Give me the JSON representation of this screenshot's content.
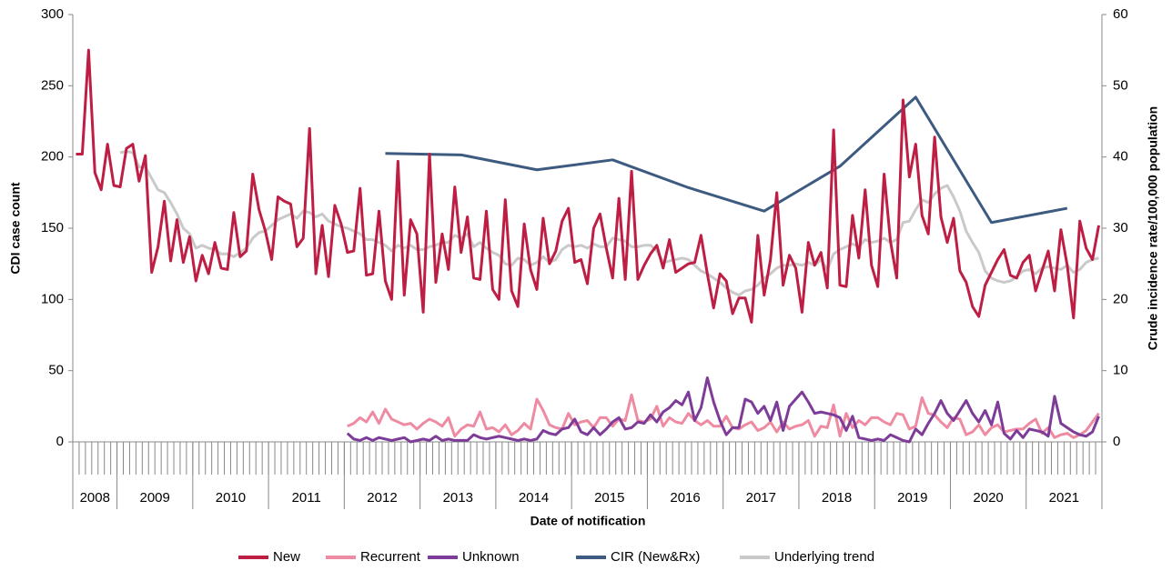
{
  "chart_data": {
    "type": "line",
    "y_label": "CDI case count",
    "y2_label": "Crude incidence rate/100,000 population",
    "x_label": "Date of notification",
    "ylim": [
      0,
      300
    ],
    "yticks": [
      0,
      50,
      100,
      150,
      200,
      250,
      300
    ],
    "y2lim": [
      0,
      60
    ],
    "y2ticks": [
      0,
      10,
      20,
      30,
      40,
      50,
      60
    ],
    "year_labels": [
      "2008",
      "2009",
      "2010",
      "2011",
      "2012",
      "2013",
      "2014",
      "2015",
      "2016",
      "2017",
      "2018",
      "2019",
      "2020",
      "2021"
    ],
    "year_months": [
      7,
      12,
      12,
      12,
      12,
      12,
      12,
      12,
      12,
      12,
      12,
      12,
      12,
      12
    ],
    "categories": [
      null,
      null,
      null,
      null,
      null,
      null,
      null,
      null,
      null,
      null,
      null,
      null,
      null,
      null,
      null,
      null,
      null,
      null,
      null,
      null,
      null,
      null,
      null,
      null,
      null,
      null,
      null,
      null,
      null,
      null,
      null,
      null,
      null,
      null,
      null,
      null,
      null,
      null,
      null,
      null,
      null,
      null,
      null,
      null,
      null,
      null,
      null,
      null,
      null,
      null,
      null,
      null,
      null,
      null,
      null,
      null,
      null,
      null,
      null,
      null,
      null,
      null,
      null,
      null,
      null,
      null,
      null,
      null,
      null,
      null,
      null,
      null,
      null,
      null,
      null,
      null,
      null,
      null,
      null,
      null,
      null,
      null,
      null,
      null,
      null,
      null,
      null,
      null,
      null,
      null,
      null,
      null,
      null,
      null,
      null,
      null,
      null,
      null,
      null,
      null,
      null,
      null,
      null,
      null,
      null,
      null,
      null,
      null,
      null,
      null,
      null,
      null,
      null,
      null,
      null,
      null,
      null,
      null,
      null,
      null,
      null,
      null,
      null,
      null,
      null,
      null,
      null,
      null,
      null,
      null,
      null,
      null,
      null,
      null,
      null,
      null,
      null,
      null,
      null,
      null,
      null,
      null,
      null,
      null,
      null,
      null,
      null,
      null,
      null,
      null,
      null,
      null,
      null,
      null,
      null,
      null,
      null,
      null,
      null,
      null,
      null,
      null,
      null
    ],
    "series": [
      {
        "name": "New",
        "color": "#be1e44",
        "values": [
          202,
          202,
          275,
          189,
          177,
          209,
          180,
          179,
          206,
          209,
          183,
          201,
          119,
          137,
          169,
          127,
          156,
          126,
          144,
          113,
          131,
          118,
          140,
          122,
          121,
          161,
          130,
          134,
          188,
          163,
          148,
          128,
          172,
          169,
          167,
          137,
          143,
          220,
          118,
          152,
          116,
          166,
          153,
          133,
          134,
          178,
          117,
          118,
          162,
          113,
          100,
          197,
          103,
          156,
          146,
          91,
          202,
          112,
          146,
          121,
          179,
          133,
          158,
          115,
          114,
          162,
          107,
          100,
          170,
          106,
          95,
          153,
          121,
          107,
          157,
          125,
          134,
          155,
          164,
          126,
          128,
          111,
          150,
          160,
          136,
          115,
          171,
          114,
          190,
          114,
          124,
          132,
          138,
          122,
          142,
          119,
          122,
          125,
          126,
          145,
          118,
          94,
          118,
          113,
          90,
          101,
          101,
          84,
          145,
          103,
          128,
          175,
          110,
          131,
          122,
          91,
          140,
          124,
          133,
          108,
          219,
          110,
          109,
          159,
          129,
          177,
          124,
          109,
          188,
          141,
          115,
          240,
          186,
          209,
          159,
          146,
          214,
          158,
          140,
          157,
          120,
          112,
          95,
          88,
          110,
          119,
          128,
          135,
          117,
          115,
          126,
          131,
          106,
          120,
          134,
          106,
          149,
          124,
          87,
          155,
          136,
          128,
          152
        ]
      },
      {
        "name": "Recurrent",
        "color": "#ee8aa2",
        "values": [
          null,
          null,
          null,
          null,
          null,
          null,
          null,
          null,
          null,
          null,
          null,
          null,
          null,
          null,
          null,
          null,
          null,
          null,
          null,
          null,
          null,
          null,
          null,
          null,
          null,
          null,
          null,
          null,
          null,
          null,
          null,
          null,
          null,
          null,
          null,
          null,
          null,
          null,
          null,
          null,
          null,
          null,
          null,
          11,
          13,
          17,
          14,
          21,
          13,
          23,
          16,
          14,
          12,
          13,
          9,
          13,
          16,
          14,
          11,
          17,
          4,
          9,
          12,
          11,
          21,
          9,
          10,
          7,
          12,
          5,
          8,
          13,
          9,
          30,
          22,
          12,
          10,
          9,
          20,
          12,
          14,
          15,
          10,
          17,
          17,
          11,
          16,
          15,
          33,
          15,
          14,
          16,
          25,
          11,
          17,
          14,
          13,
          20,
          15,
          12,
          15,
          11,
          11,
          18,
          10,
          9,
          12,
          14,
          8,
          10,
          14,
          7,
          14,
          9,
          11,
          12,
          15,
          4,
          11,
          10,
          26,
          4,
          20,
          10,
          15,
          12,
          17,
          17,
          14,
          12,
          20,
          19,
          9,
          11,
          31,
          20,
          19,
          14,
          10,
          17,
          16,
          5,
          7,
          12,
          5,
          10,
          12,
          7,
          8,
          9,
          9,
          13,
          16,
          6,
          10,
          3,
          5,
          6,
          3,
          5,
          8,
          14,
          20
        ]
      },
      {
        "name": "Unknown",
        "color": "#7d3c98",
        "values": [
          null,
          null,
          null,
          null,
          null,
          null,
          null,
          null,
          null,
          null,
          null,
          null,
          null,
          null,
          null,
          null,
          null,
          null,
          null,
          null,
          null,
          null,
          null,
          null,
          null,
          null,
          null,
          null,
          null,
          null,
          null,
          null,
          null,
          null,
          null,
          null,
          null,
          null,
          null,
          null,
          null,
          null,
          null,
          6,
          2,
          1,
          3,
          1,
          3,
          2,
          1,
          2,
          3,
          0,
          1,
          2,
          1,
          4,
          1,
          2,
          1,
          1,
          1,
          5,
          3,
          2,
          3,
          4,
          3,
          2,
          1,
          2,
          1,
          2,
          8,
          6,
          5,
          9,
          10,
          16,
          7,
          5,
          10,
          5,
          9,
          14,
          17,
          9,
          10,
          14,
          13,
          19,
          14,
          21,
          24,
          29,
          26,
          35,
          15,
          24,
          45,
          28,
          15,
          5,
          10,
          10,
          30,
          28,
          20,
          25,
          15,
          28,
          8,
          25,
          30,
          35,
          28,
          20,
          21,
          20,
          19,
          17,
          8,
          18,
          3,
          2,
          1,
          2,
          1,
          5,
          3,
          1,
          0,
          9,
          5,
          13,
          20,
          29,
          20,
          15,
          22,
          29,
          20,
          14,
          22,
          12,
          28,
          6,
          2,
          8,
          3,
          9,
          8,
          7,
          4,
          32,
          13,
          10,
          7,
          5,
          4,
          7,
          18
        ]
      },
      {
        "name": "CIR (New&Rx)",
        "color": "#3d5a80",
        "axis": "y2",
        "connect_gaps": true,
        "values": [
          null,
          null,
          null,
          null,
          null,
          null,
          null,
          null,
          null,
          null,
          null,
          null,
          null,
          null,
          null,
          null,
          null,
          null,
          null,
          null,
          null,
          null,
          null,
          null,
          null,
          null,
          null,
          null,
          null,
          null,
          null,
          null,
          null,
          null,
          null,
          null,
          null,
          null,
          null,
          null,
          null,
          null,
          null,
          null,
          null,
          null,
          null,
          null,
          null,
          40.5,
          null,
          null,
          null,
          null,
          null,
          null,
          null,
          null,
          null,
          null,
          null,
          40.3,
          null,
          null,
          null,
          null,
          null,
          null,
          null,
          null,
          null,
          null,
          null,
          38.2,
          null,
          null,
          null,
          null,
          null,
          null,
          null,
          null,
          null,
          null,
          null,
          39.6,
          null,
          null,
          null,
          null,
          null,
          null,
          null,
          null,
          null,
          null,
          null,
          35.7,
          null,
          null,
          null,
          null,
          null,
          null,
          null,
          null,
          null,
          null,
          null,
          32.4,
          null,
          null,
          null,
          null,
          null,
          null,
          null,
          null,
          null,
          null,
          null,
          38.7,
          null,
          null,
          null,
          null,
          null,
          null,
          null,
          null,
          null,
          null,
          null,
          48.4,
          null,
          null,
          null,
          null,
          null,
          null,
          null,
          null,
          null,
          null,
          null,
          30.8,
          null,
          null,
          null,
          null,
          null,
          null,
          null,
          null,
          null,
          null,
          null,
          32.8,
          null,
          null,
          null,
          null,
          null
        ]
      },
      {
        "name": "Underlying trend",
        "color": "#c9c9c9",
        "values": [
          null,
          null,
          null,
          null,
          null,
          null,
          null,
          203,
          204,
          203,
          193,
          193,
          185,
          177,
          175,
          168,
          160,
          150,
          146,
          136,
          138,
          136,
          135,
          132,
          132,
          130,
          133,
          136,
          143,
          147,
          148,
          152,
          156,
          158,
          160,
          157,
          162,
          161,
          158,
          160,
          155,
          153,
          151,
          150,
          148,
          146,
          142,
          142,
          140,
          138,
          134,
          138,
          136,
          138,
          135,
          135,
          137,
          138,
          140,
          140,
          145,
          143,
          146,
          137,
          140,
          136,
          133,
          131,
          125,
          124,
          129,
          128,
          124,
          126,
          130,
          126,
          128,
          135,
          138,
          137,
          138,
          136,
          139,
          137,
          137,
          143,
          142,
          141,
          137,
          137,
          138,
          138,
          134,
          126,
          127,
          128,
          129,
          128,
          124,
          120,
          118,
          115,
          112,
          108,
          105,
          103,
          106,
          107,
          110,
          115,
          118,
          122,
          124,
          124,
          125,
          124,
          126,
          124,
          128,
          121,
          132,
          135,
          137,
          139,
          137,
          142,
          140,
          141,
          143,
          140,
          142,
          154,
          155,
          163,
          170,
          168,
          174,
          178,
          180,
          172,
          162,
          148,
          140,
          133,
          120,
          115,
          113,
          112,
          113,
          116,
          120,
          121,
          118,
          122,
          123,
          122,
          121,
          124,
          119,
          121,
          126,
          128,
          129
        ]
      }
    ]
  }
}
